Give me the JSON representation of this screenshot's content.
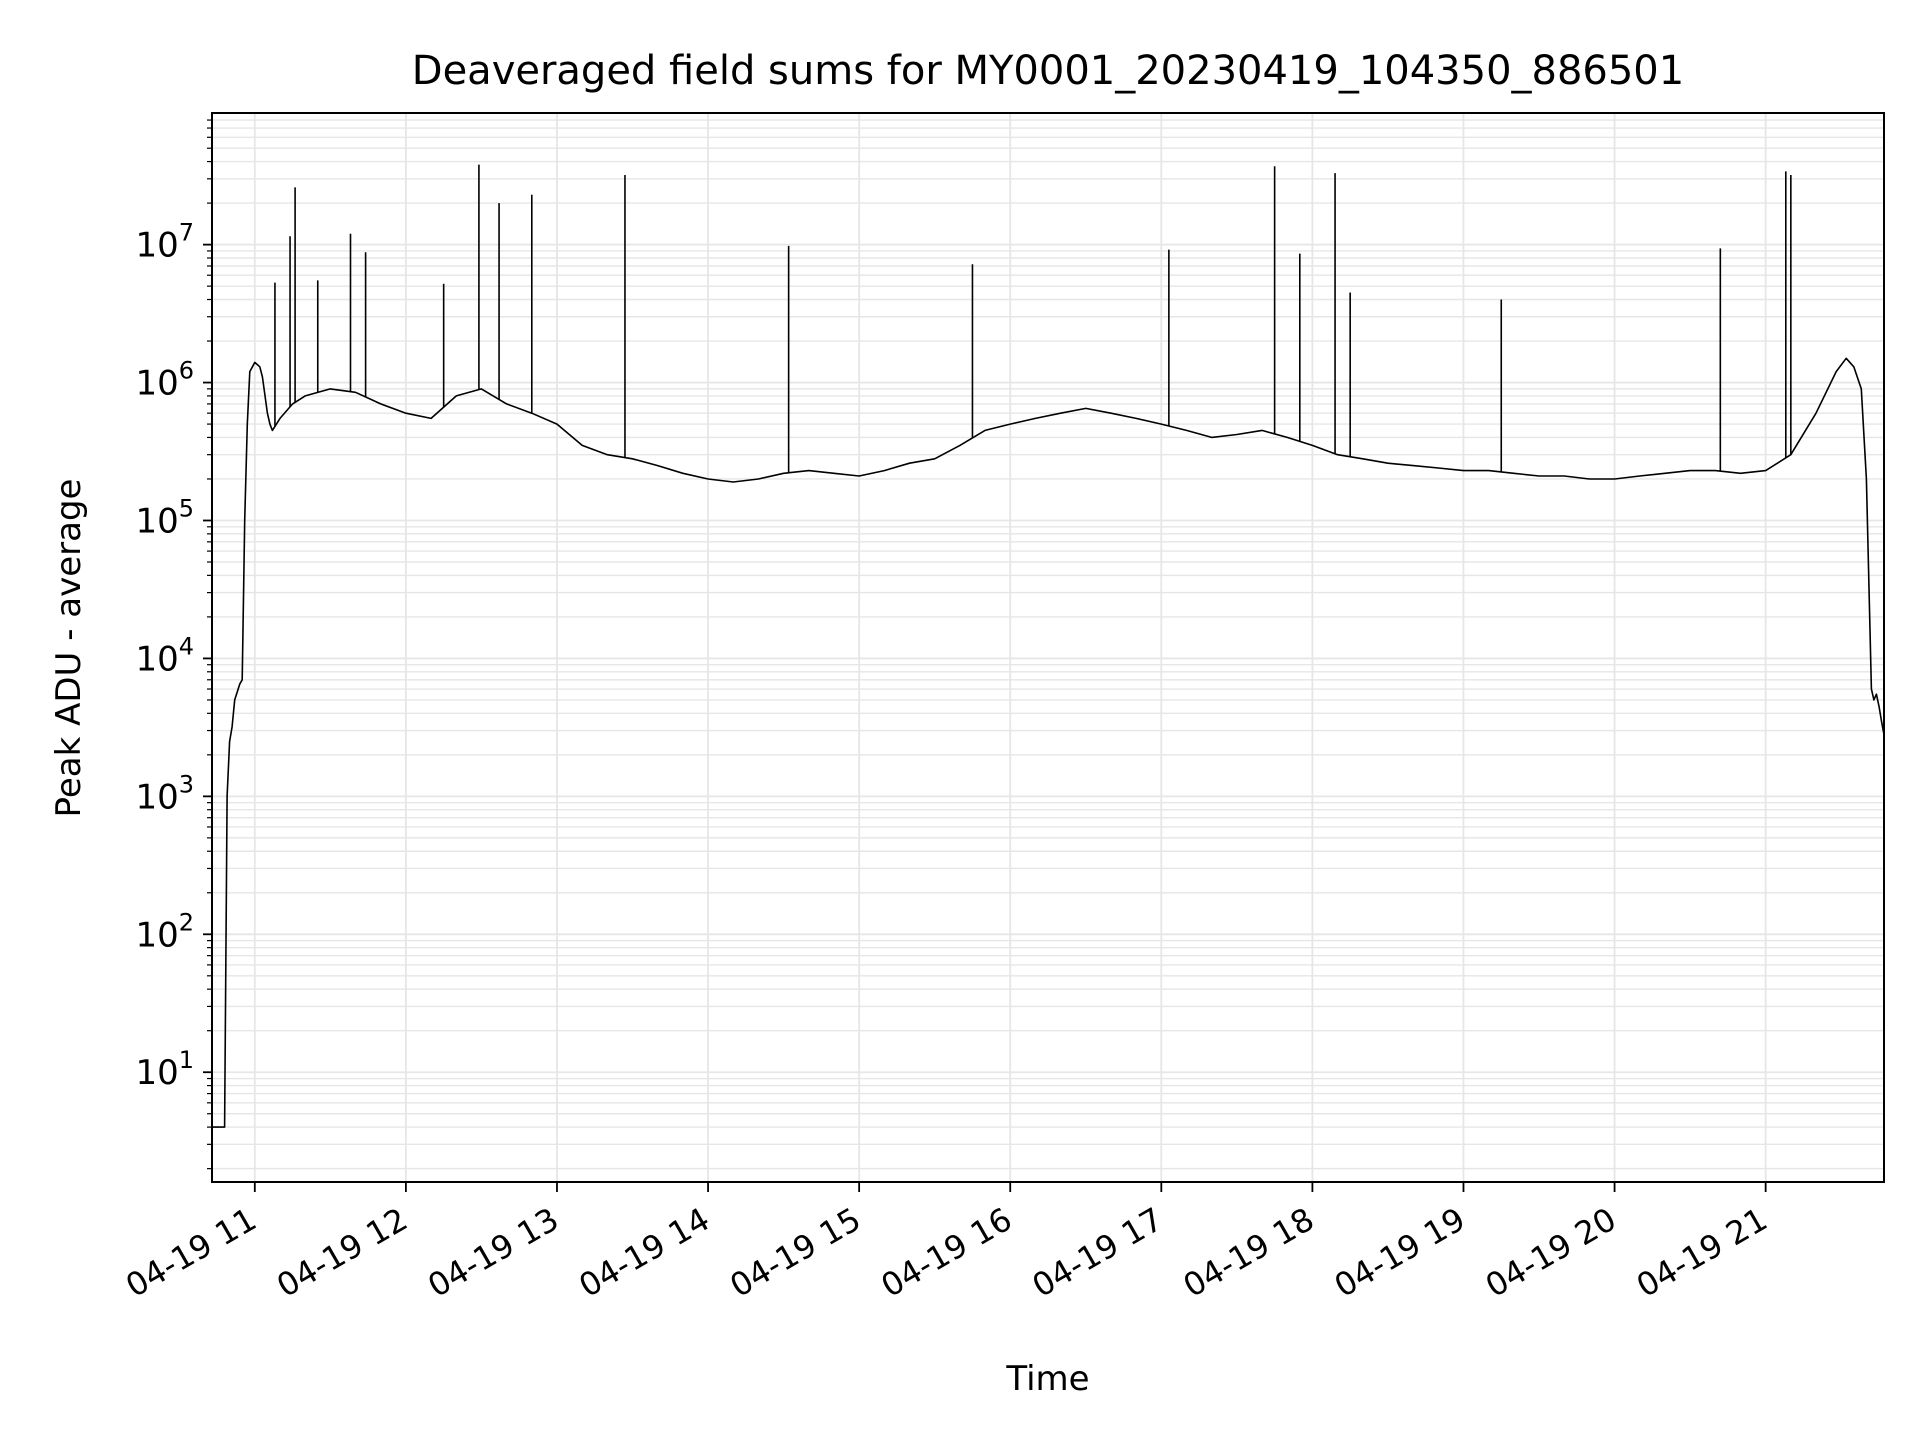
{
  "chart_data": {
    "type": "line",
    "title": "Deaveraged field sums for MY0001_20230419_104350_886501",
    "xlabel": "Time",
    "ylabel": "Peak ADU - average",
    "yscale": "log",
    "ylim": [
      1.6,
      90000000
    ],
    "xlim": [
      "2023-04-19 10:43",
      "2023-04-19 21:47"
    ],
    "grid": true,
    "line_color": "#000000",
    "grid_color": "#e6e6e6",
    "x_ticks": [
      {
        "value": "2023-04-19 11:00",
        "label": "04-19 11"
      },
      {
        "value": "2023-04-19 12:00",
        "label": "04-19 12"
      },
      {
        "value": "2023-04-19 13:00",
        "label": "04-19 13"
      },
      {
        "value": "2023-04-19 14:00",
        "label": "04-19 14"
      },
      {
        "value": "2023-04-19 15:00",
        "label": "04-19 15"
      },
      {
        "value": "2023-04-19 16:00",
        "label": "04-19 16"
      },
      {
        "value": "2023-04-19 17:00",
        "label": "04-19 17"
      },
      {
        "value": "2023-04-19 18:00",
        "label": "04-19 18"
      },
      {
        "value": "2023-04-19 19:00",
        "label": "04-19 19"
      },
      {
        "value": "2023-04-19 20:00",
        "label": "04-19 20"
      },
      {
        "value": "2023-04-19 21:00",
        "label": "04-19 21"
      }
    ],
    "y_ticks": [
      {
        "value": 10,
        "base": "10",
        "exp": "1"
      },
      {
        "value": 100,
        "base": "10",
        "exp": "2"
      },
      {
        "value": 1000,
        "base": "10",
        "exp": "3"
      },
      {
        "value": 10000,
        "base": "10",
        "exp": "4"
      },
      {
        "value": 100000,
        "base": "10",
        "exp": "5"
      },
      {
        "value": 1000000,
        "base": "10",
        "exp": "6"
      },
      {
        "value": 10000000,
        "base": "10",
        "exp": "7"
      }
    ],
    "series": [
      {
        "x": [
          "2023-04-19 10:43",
          "2023-04-19 10:45",
          "2023-04-19 10:47",
          "2023-04-19 10:48",
          "2023-04-19 10:49",
          "2023-04-19 10:50",
          "2023-04-19 10:51",
          "2023-04-19 10:52",
          "2023-04-19 10:54",
          "2023-04-19 10:55",
          "2023-04-19 10:56",
          "2023-04-19 10:57",
          "2023-04-19 10:58",
          "2023-04-19 11:00",
          "2023-04-19 11:02",
          "2023-04-19 11:03",
          "2023-04-19 11:05",
          "2023-04-19 11:06",
          "2023-04-19 11:07",
          "2023-04-19 11:10",
          "2023-04-19 11:15",
          "2023-04-19 11:20",
          "2023-04-19 11:30",
          "2023-04-19 11:40",
          "2023-04-19 11:50",
          "2023-04-19 12:00",
          "2023-04-19 12:10",
          "2023-04-19 12:20",
          "2023-04-19 12:30",
          "2023-04-19 12:40",
          "2023-04-19 12:50",
          "2023-04-19 13:00",
          "2023-04-19 13:10",
          "2023-04-19 13:20",
          "2023-04-19 13:30",
          "2023-04-19 13:40",
          "2023-04-19 13:50",
          "2023-04-19 14:00",
          "2023-04-19 14:10",
          "2023-04-19 14:20",
          "2023-04-19 14:30",
          "2023-04-19 14:40",
          "2023-04-19 14:50",
          "2023-04-19 15:00",
          "2023-04-19 15:10",
          "2023-04-19 15:20",
          "2023-04-19 15:30",
          "2023-04-19 15:40",
          "2023-04-19 15:50",
          "2023-04-19 16:00",
          "2023-04-19 16:10",
          "2023-04-19 16:20",
          "2023-04-19 16:30",
          "2023-04-19 16:40",
          "2023-04-19 16:50",
          "2023-04-19 17:00",
          "2023-04-19 17:10",
          "2023-04-19 17:20",
          "2023-04-19 17:30",
          "2023-04-19 17:40",
          "2023-04-19 17:50",
          "2023-04-19 18:00",
          "2023-04-19 18:10",
          "2023-04-19 18:20",
          "2023-04-19 18:30",
          "2023-04-19 18:40",
          "2023-04-19 18:50",
          "2023-04-19 19:00",
          "2023-04-19 19:10",
          "2023-04-19 19:20",
          "2023-04-19 19:30",
          "2023-04-19 19:40",
          "2023-04-19 19:50",
          "2023-04-19 20:00",
          "2023-04-19 20:10",
          "2023-04-19 20:20",
          "2023-04-19 20:30",
          "2023-04-19 20:40",
          "2023-04-19 20:50",
          "2023-04-19 21:00",
          "2023-04-19 21:10",
          "2023-04-19 21:20",
          "2023-04-19 21:28",
          "2023-04-19 21:32",
          "2023-04-19 21:35",
          "2023-04-19 21:38",
          "2023-04-19 21:40",
          "2023-04-19 21:42",
          "2023-04-19 21:43",
          "2023-04-19 21:44",
          "2023-04-19 21:45",
          "2023-04-19 21:46",
          "2023-04-19 21:47"
        ],
        "y": [
          4,
          4,
          4,
          4,
          1000,
          2500,
          3200,
          5000,
          6500,
          7000,
          100000,
          500000,
          1200000,
          1400000,
          1300000,
          1100000,
          600000,
          500000,
          450000,
          550000,
          700000,
          800000,
          900000,
          850000,
          700000,
          600000,
          550000,
          800000,
          900000,
          700000,
          600000,
          500000,
          350000,
          300000,
          280000,
          250000,
          220000,
          200000,
          190000,
          200000,
          220000,
          230000,
          220000,
          210000,
          230000,
          260000,
          280000,
          350000,
          450000,
          500000,
          550000,
          600000,
          650000,
          600000,
          550000,
          500000,
          450000,
          400000,
          420000,
          450000,
          400000,
          350000,
          300000,
          280000,
          260000,
          250000,
          240000,
          230000,
          230000,
          220000,
          210000,
          210000,
          200000,
          200000,
          210000,
          220000,
          230000,
          230000,
          220000,
          230000,
          300000,
          600000,
          1200000,
          1500000,
          1300000,
          900000,
          200000,
          6000,
          5000,
          5500,
          4500,
          3500,
          2800
        ]
      }
    ],
    "spikes": [
      {
        "x": "2023-04-19 11:08",
        "y": 5300000
      },
      {
        "x": "2023-04-19 11:14",
        "y": 11500000
      },
      {
        "x": "2023-04-19 11:16",
        "y": 26000000
      },
      {
        "x": "2023-04-19 11:25",
        "y": 5500000
      },
      {
        "x": "2023-04-19 11:38",
        "y": 12000000
      },
      {
        "x": "2023-04-19 11:44",
        "y": 8800000
      },
      {
        "x": "2023-04-19 12:15",
        "y": 5200000
      },
      {
        "x": "2023-04-19 12:29",
        "y": 38000000
      },
      {
        "x": "2023-04-19 12:37",
        "y": 20000000
      },
      {
        "x": "2023-04-19 12:50",
        "y": 23000000
      },
      {
        "x": "2023-04-19 13:27",
        "y": 32000000
      },
      {
        "x": "2023-04-19 14:32",
        "y": 9800000
      },
      {
        "x": "2023-04-19 15:45",
        "y": 7200000
      },
      {
        "x": "2023-04-19 17:03",
        "y": 9200000
      },
      {
        "x": "2023-04-19 17:45",
        "y": 37000000
      },
      {
        "x": "2023-04-19 17:55",
        "y": 8600000
      },
      {
        "x": "2023-04-19 18:09",
        "y": 33000000
      },
      {
        "x": "2023-04-19 18:15",
        "y": 4500000
      },
      {
        "x": "2023-04-19 19:15",
        "y": 4000000
      },
      {
        "x": "2023-04-19 20:42",
        "y": 9400000
      },
      {
        "x": "2023-04-19 21:08",
        "y": 34000000
      },
      {
        "x": "2023-04-19 21:10",
        "y": 32000000
      }
    ]
  }
}
